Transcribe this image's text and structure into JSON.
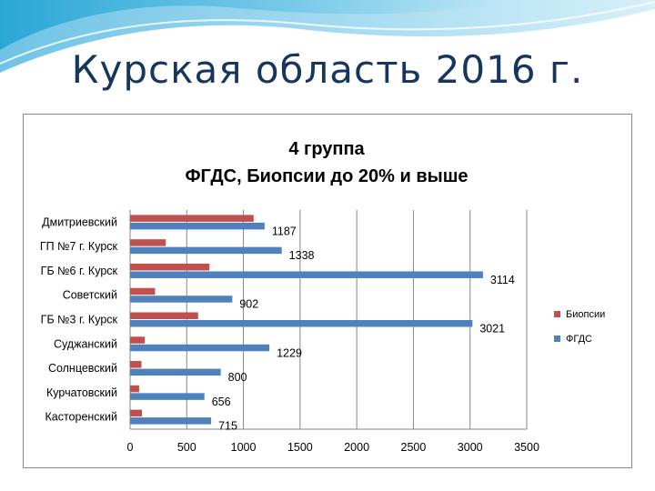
{
  "slide": {
    "title": "Курская область 2016 г."
  },
  "colors": {
    "biopsy": "#c0504d",
    "fgds": "#4f81bd",
    "title": "#17365d",
    "grid": "#868686"
  },
  "chart_data": {
    "type": "bar",
    "orientation": "horizontal",
    "title": [
      "4 группа",
      "ФГДС, Биопсии до 20% и выше"
    ],
    "categories": [
      "Дмитриевский",
      "ГП №7 г. Курск",
      "ГБ №6 г. Курск",
      "Советский",
      "ГБ №3 г. Курск",
      "Суджанский",
      "Солнцевский",
      "Курчатовский",
      "Касторенский"
    ],
    "series": [
      {
        "name": "Биопсии",
        "color": "#c0504d",
        "values": [
          1090,
          315,
          700,
          220,
          600,
          130,
          100,
          80,
          105
        ]
      },
      {
        "name": "ФГДС",
        "color": "#4f81bd",
        "values": [
          1187,
          1338,
          3114,
          902,
          3021,
          1229,
          800,
          656,
          715
        ]
      }
    ],
    "data_labels": [
      "1187",
      "1338",
      "3114",
      "902",
      "3021",
      "1229",
      "800",
      "656",
      "715"
    ],
    "xlim": [
      0,
      3500
    ],
    "xticks": [
      "0",
      "500",
      "1000",
      "1500",
      "2000",
      "2500",
      "3000",
      "3500"
    ],
    "grid": true,
    "legend": "right"
  }
}
